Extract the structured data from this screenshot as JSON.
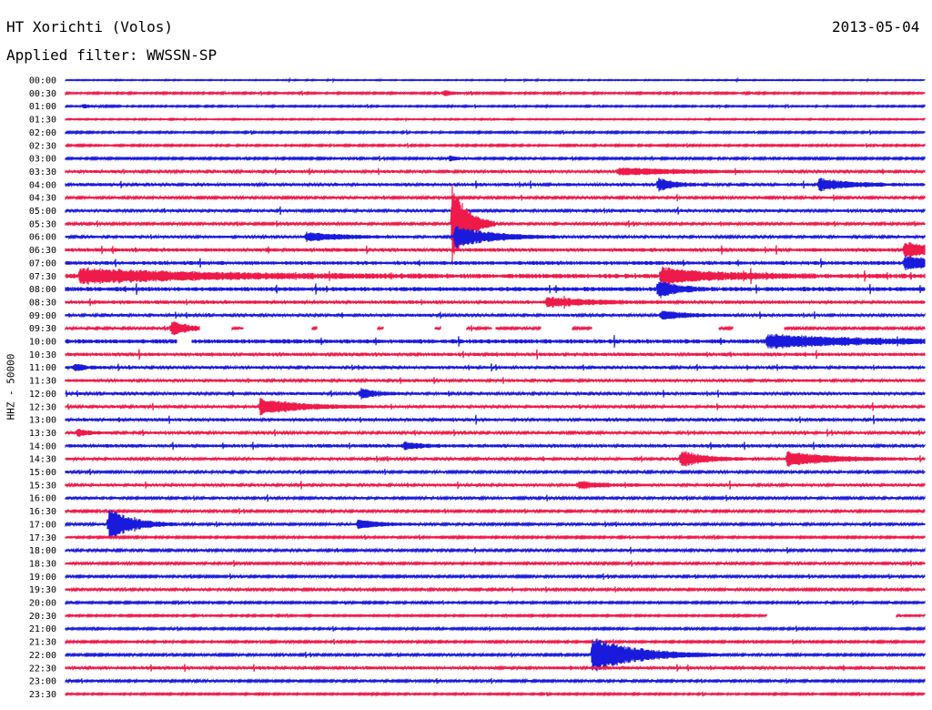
{
  "header": {
    "station": "HT Xorichti (Volos)",
    "date": "2013-05-04",
    "filter": "Applied filter: WWSSN-SP"
  },
  "colors": {
    "even": "#1a1adc",
    "odd": "#ee1a4a"
  },
  "chart_data": {
    "type": "line",
    "title": "HT Xorichti (Volos)",
    "subtitle": "Applied filter: WWSSN-SP",
    "ylabel": "HHZ - 50000",
    "xlabel": "",
    "rows": [
      "00:00",
      "00:30",
      "01:00",
      "01:30",
      "02:00",
      "02:30",
      "03:00",
      "03:30",
      "04:00",
      "04:30",
      "05:00",
      "05:30",
      "06:00",
      "06:30",
      "07:00",
      "07:30",
      "08:00",
      "08:30",
      "09:00",
      "09:30",
      "10:00",
      "10:30",
      "11:00",
      "11:30",
      "12:00",
      "12:30",
      "13:00",
      "13:30",
      "14:00",
      "14:30",
      "15:00",
      "15:30",
      "16:00",
      "16:30",
      "17:00",
      "17:30",
      "18:00",
      "18:30",
      "19:00",
      "19:30",
      "20:00",
      "20:30",
      "21:00",
      "21:30",
      "22:00",
      "22:30",
      "23:00",
      "23:30"
    ],
    "row_minutes": 30,
    "noise_level": [
      0.4,
      0.7,
      0.6,
      0.5,
      0.7,
      0.7,
      0.8,
      1.2,
      1.3,
      1.0,
      1.1,
      1.0,
      1.1,
      1.5,
      1.6,
      2.0,
      1.8,
      1.4,
      1.2,
      1.0,
      1.8,
      1.4,
      1.2,
      1.2,
      1.2,
      1.2,
      1.3,
      1.1,
      1.4,
      1.1,
      1.0,
      1.2,
      1.0,
      0.9,
      1.0,
      0.8,
      1.0,
      0.9,
      0.9,
      1.0,
      0.8,
      0.7,
      0.8,
      0.8,
      0.9,
      1.3,
      0.9,
      0.7
    ],
    "events": [
      {
        "row": 1,
        "minute": 13.2,
        "amplitude": 3,
        "duration": 0.4
      },
      {
        "row": 2,
        "minute": 0.6,
        "amplitude": 2,
        "duration": 0.4
      },
      {
        "row": 6,
        "minute": 13.4,
        "amplitude": 3,
        "duration": 0.3
      },
      {
        "row": 7,
        "minute": 19.3,
        "amplitude": 4,
        "duration": 2.0
      },
      {
        "row": 8,
        "minute": 20.7,
        "amplitude": 7,
        "duration": 0.5
      },
      {
        "row": 8,
        "minute": 26.3,
        "amplitude": 7,
        "duration": 1.0
      },
      {
        "row": 11,
        "minute": 13.5,
        "amplitude": 45,
        "duration": 0.5
      },
      {
        "row": 12,
        "minute": 13.6,
        "amplitude": 12,
        "duration": 1.2
      },
      {
        "row": 12,
        "minute": 8.4,
        "amplitude": 5,
        "duration": 1.2
      },
      {
        "row": 13,
        "minute": 29.3,
        "amplitude": 8,
        "duration": 1.2
      },
      {
        "row": 14,
        "minute": 29.3,
        "amplitude": 7,
        "duration": 1.5
      },
      {
        "row": 15,
        "minute": 0.5,
        "amplitude": 8,
        "duration": 4.0
      },
      {
        "row": 15,
        "minute": 20.8,
        "amplitude": 9,
        "duration": 1.8
      },
      {
        "row": 16,
        "minute": 20.7,
        "amplitude": 10,
        "duration": 0.6
      },
      {
        "row": 17,
        "minute": 16.8,
        "amplitude": 5,
        "duration": 1.5
      },
      {
        "row": 18,
        "minute": 20.8,
        "amplitude": 5,
        "duration": 0.8
      },
      {
        "row": 19,
        "minute": 3.7,
        "amplitude": 10,
        "duration": 0.5
      },
      {
        "row": 20,
        "minute": 24.5,
        "amplitude": 7,
        "duration": 3.0
      },
      {
        "row": 22,
        "minute": 0.3,
        "amplitude": 4,
        "duration": 0.4
      },
      {
        "row": 24,
        "minute": 10.3,
        "amplitude": 6,
        "duration": 0.5
      },
      {
        "row": 25,
        "minute": 6.8,
        "amplitude": 9,
        "duration": 1.3
      },
      {
        "row": 27,
        "minute": 0.4,
        "amplitude": 4,
        "duration": 0.4
      },
      {
        "row": 28,
        "minute": 11.8,
        "amplitude": 4,
        "duration": 0.6
      },
      {
        "row": 29,
        "minute": 21.5,
        "amplitude": 9,
        "duration": 0.8
      },
      {
        "row": 29,
        "minute": 25.2,
        "amplitude": 8,
        "duration": 1.5
      },
      {
        "row": 31,
        "minute": 17.9,
        "amplitude": 4,
        "duration": 0.8
      },
      {
        "row": 34,
        "minute": 1.5,
        "amplitude": 18,
        "duration": 0.8
      },
      {
        "row": 34,
        "minute": 10.2,
        "amplitude": 5,
        "duration": 0.8
      },
      {
        "row": 44,
        "minute": 18.4,
        "amplitude": 20,
        "duration": 1.5
      }
    ],
    "gaps": [
      {
        "row": 19,
        "from": 4.7,
        "to": 5.8
      },
      {
        "row": 19,
        "from": 6.2,
        "to": 8.6
      },
      {
        "row": 19,
        "from": 8.8,
        "to": 10.9
      },
      {
        "row": 19,
        "from": 11.1,
        "to": 12.9
      },
      {
        "row": 19,
        "from": 13.1,
        "to": 14.0
      },
      {
        "row": 19,
        "from": 14.9,
        "to": 15.0
      },
      {
        "row": 19,
        "from": 16.6,
        "to": 17.7
      },
      {
        "row": 19,
        "from": 18.4,
        "to": 22.8
      },
      {
        "row": 19,
        "from": 23.3,
        "to": 25.1
      },
      {
        "row": 20,
        "from": 3.9,
        "to": 4.4
      },
      {
        "row": 41,
        "from": 24.5,
        "to": 29.0
      }
    ],
    "grid": false
  }
}
